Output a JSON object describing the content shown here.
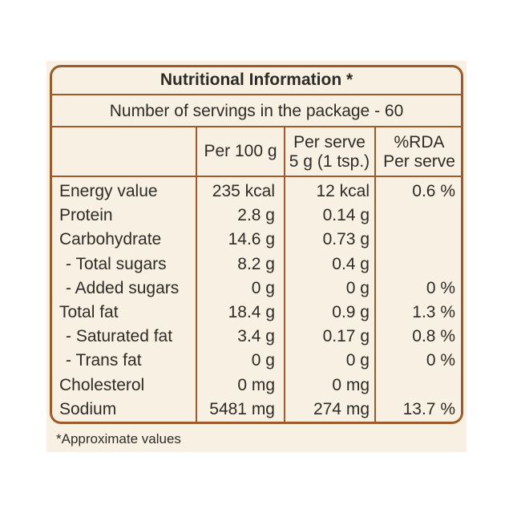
{
  "table": {
    "title": "Nutritional Information *",
    "subtitle": "Number of servings in the package - 60",
    "headers": [
      [
        "Per 100 g"
      ],
      [
        "Per serve",
        "5 g (1 tsp.)"
      ],
      [
        "%RDA",
        "Per serve"
      ]
    ],
    "rows": [
      [
        "Energy value",
        "235 kcal",
        "12 kcal",
        "0.6 %"
      ],
      [
        "Protein",
        "2.8 g",
        "0.14 g",
        null
      ],
      [
        "Carbohydrate",
        "14.6 g",
        "0.73 g",
        null
      ],
      [
        "- Total sugars",
        "8.2 g",
        "0.4 g",
        null
      ],
      [
        "- Added sugars",
        "0 g",
        "0 g",
        "0 %"
      ],
      [
        "Total fat",
        "18.4 g",
        "0.9 g",
        "1.3 %"
      ],
      [
        "- Saturated fat",
        "3.4 g",
        "0.17 g",
        "0.8 %"
      ],
      [
        "- Trans fat",
        "0 g",
        "0 g",
        "0 %"
      ],
      [
        "Cholesterol",
        "0 mg",
        "0 mg",
        null
      ],
      [
        "Sodium",
        "5481 mg",
        "274 mg",
        "13.7 %"
      ]
    ]
  },
  "footnote": "*Approximate values"
}
